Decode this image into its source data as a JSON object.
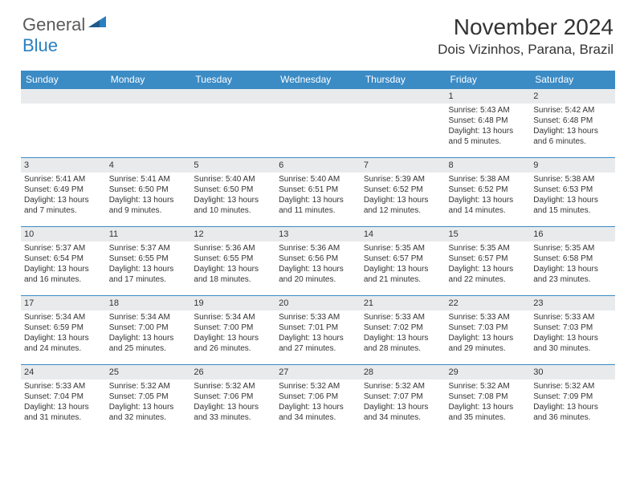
{
  "logo": {
    "text1": "General",
    "text2": "Blue"
  },
  "title": "November 2024",
  "location": "Dois Vizinhos, Parana, Brazil",
  "colors": {
    "header_bg": "#3b8bc5",
    "daynum_bg": "#e8eaec",
    "row_border": "#3b8bc5",
    "text": "#333333",
    "logo_blue": "#2a7fbf",
    "logo_grey": "#5a5a5a"
  },
  "day_labels": [
    "Sunday",
    "Monday",
    "Tuesday",
    "Wednesday",
    "Thursday",
    "Friday",
    "Saturday"
  ],
  "weeks": [
    [
      null,
      null,
      null,
      null,
      null,
      {
        "n": "1",
        "sr": "5:43 AM",
        "ss": "6:48 PM",
        "dl": "13 hours and 5 minutes."
      },
      {
        "n": "2",
        "sr": "5:42 AM",
        "ss": "6:48 PM",
        "dl": "13 hours and 6 minutes."
      }
    ],
    [
      {
        "n": "3",
        "sr": "5:41 AM",
        "ss": "6:49 PM",
        "dl": "13 hours and 7 minutes."
      },
      {
        "n": "4",
        "sr": "5:41 AM",
        "ss": "6:50 PM",
        "dl": "13 hours and 9 minutes."
      },
      {
        "n": "5",
        "sr": "5:40 AM",
        "ss": "6:50 PM",
        "dl": "13 hours and 10 minutes."
      },
      {
        "n": "6",
        "sr": "5:40 AM",
        "ss": "6:51 PM",
        "dl": "13 hours and 11 minutes."
      },
      {
        "n": "7",
        "sr": "5:39 AM",
        "ss": "6:52 PM",
        "dl": "13 hours and 12 minutes."
      },
      {
        "n": "8",
        "sr": "5:38 AM",
        "ss": "6:52 PM",
        "dl": "13 hours and 14 minutes."
      },
      {
        "n": "9",
        "sr": "5:38 AM",
        "ss": "6:53 PM",
        "dl": "13 hours and 15 minutes."
      }
    ],
    [
      {
        "n": "10",
        "sr": "5:37 AM",
        "ss": "6:54 PM",
        "dl": "13 hours and 16 minutes."
      },
      {
        "n": "11",
        "sr": "5:37 AM",
        "ss": "6:55 PM",
        "dl": "13 hours and 17 minutes."
      },
      {
        "n": "12",
        "sr": "5:36 AM",
        "ss": "6:55 PM",
        "dl": "13 hours and 18 minutes."
      },
      {
        "n": "13",
        "sr": "5:36 AM",
        "ss": "6:56 PM",
        "dl": "13 hours and 20 minutes."
      },
      {
        "n": "14",
        "sr": "5:35 AM",
        "ss": "6:57 PM",
        "dl": "13 hours and 21 minutes."
      },
      {
        "n": "15",
        "sr": "5:35 AM",
        "ss": "6:57 PM",
        "dl": "13 hours and 22 minutes."
      },
      {
        "n": "16",
        "sr": "5:35 AM",
        "ss": "6:58 PM",
        "dl": "13 hours and 23 minutes."
      }
    ],
    [
      {
        "n": "17",
        "sr": "5:34 AM",
        "ss": "6:59 PM",
        "dl": "13 hours and 24 minutes."
      },
      {
        "n": "18",
        "sr": "5:34 AM",
        "ss": "7:00 PM",
        "dl": "13 hours and 25 minutes."
      },
      {
        "n": "19",
        "sr": "5:34 AM",
        "ss": "7:00 PM",
        "dl": "13 hours and 26 minutes."
      },
      {
        "n": "20",
        "sr": "5:33 AM",
        "ss": "7:01 PM",
        "dl": "13 hours and 27 minutes."
      },
      {
        "n": "21",
        "sr": "5:33 AM",
        "ss": "7:02 PM",
        "dl": "13 hours and 28 minutes."
      },
      {
        "n": "22",
        "sr": "5:33 AM",
        "ss": "7:03 PM",
        "dl": "13 hours and 29 minutes."
      },
      {
        "n": "23",
        "sr": "5:33 AM",
        "ss": "7:03 PM",
        "dl": "13 hours and 30 minutes."
      }
    ],
    [
      {
        "n": "24",
        "sr": "5:33 AM",
        "ss": "7:04 PM",
        "dl": "13 hours and 31 minutes."
      },
      {
        "n": "25",
        "sr": "5:32 AM",
        "ss": "7:05 PM",
        "dl": "13 hours and 32 minutes."
      },
      {
        "n": "26",
        "sr": "5:32 AM",
        "ss": "7:06 PM",
        "dl": "13 hours and 33 minutes."
      },
      {
        "n": "27",
        "sr": "5:32 AM",
        "ss": "7:06 PM",
        "dl": "13 hours and 34 minutes."
      },
      {
        "n": "28",
        "sr": "5:32 AM",
        "ss": "7:07 PM",
        "dl": "13 hours and 34 minutes."
      },
      {
        "n": "29",
        "sr": "5:32 AM",
        "ss": "7:08 PM",
        "dl": "13 hours and 35 minutes."
      },
      {
        "n": "30",
        "sr": "5:32 AM",
        "ss": "7:09 PM",
        "dl": "13 hours and 36 minutes."
      }
    ]
  ],
  "labels": {
    "sunrise": "Sunrise:",
    "sunset": "Sunset:",
    "daylight": "Daylight:"
  }
}
